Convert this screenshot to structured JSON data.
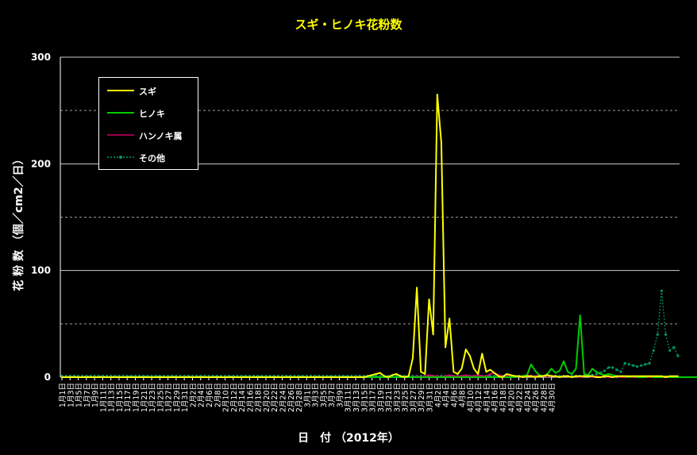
{
  "chart_data": {
    "type": "line",
    "title": "スギ・ヒノキ花粉数",
    "ylabel": "花 粉 数 （個／cm2／日）",
    "xlabel": "日　付 （2012年）",
    "ylim": [
      0,
      300
    ],
    "yticks": [
      0,
      100,
      200,
      300
    ],
    "grid": "horizontal, solid at 100s, dashed at 50s",
    "legend_position": "top-left",
    "x_tick_labels": [
      "1月1日",
      "1月3日",
      "1月5日",
      "1月7日",
      "1月9日",
      "1月11日",
      "1月13日",
      "1月15日",
      "1月17日",
      "1月19日",
      "1月21日",
      "1月23日",
      "1月25日",
      "1月27日",
      "1月29日",
      "1月31日",
      "2月2日",
      "2月4日",
      "2月6日",
      "2月8日",
      "2月10日",
      "2月12日",
      "2月14日",
      "2月16日",
      "2月18日",
      "2月20日",
      "2月22日",
      "2月24日",
      "2月26日",
      "2月28日",
      "3月1日",
      "3月3日",
      "3月5日",
      "3月7日",
      "3月9日",
      "3月11日",
      "3月13日",
      "3月15日",
      "3月17日",
      "3月19日",
      "3月21日",
      "3月23日",
      "3月25日",
      "3月27日",
      "3月29日",
      "3月31日",
      "4月2日",
      "4月4日",
      "4月6日",
      "4月8日",
      "4月10日",
      "4月12日",
      "4月14日",
      "4月16日",
      "4月18日",
      "4月20日",
      "4月22日",
      "4月24日",
      "4月26日",
      "4月28日",
      "4月30日"
    ],
    "series": [
      {
        "name": "スギ",
        "color": "#ffff00",
        "style": "solid",
        "values": [
          0,
          0,
          0,
          0,
          0,
          0,
          0,
          0,
          0,
          0,
          0,
          0,
          0,
          0,
          0,
          0,
          0,
          0,
          0,
          0,
          0,
          0,
          0,
          0,
          0,
          0,
          0,
          0,
          0,
          0,
          0,
          0,
          0,
          0,
          0,
          0,
          0,
          0,
          0,
          0,
          0,
          0,
          0,
          0,
          0,
          0,
          0,
          0,
          0,
          0,
          0,
          0,
          0,
          0,
          0,
          0,
          0,
          0,
          0,
          0,
          0,
          0,
          0,
          0,
          0,
          0,
          0,
          0,
          0,
          0,
          0,
          0,
          0,
          0,
          0,
          1,
          2,
          3,
          4,
          1,
          0,
          2,
          3,
          1,
          0,
          1,
          18,
          84,
          5,
          3,
          73,
          40,
          265,
          220,
          28,
          55,
          5,
          3,
          8,
          26,
          20,
          8,
          3,
          22,
          5,
          7,
          4,
          1,
          0,
          3,
          2,
          1,
          1,
          0,
          1,
          1,
          0,
          1,
          1,
          2,
          1,
          1,
          0,
          1,
          1,
          0,
          1,
          1,
          1,
          1,
          1,
          0,
          0,
          1,
          1,
          0,
          1,
          1,
          1,
          1,
          1,
          1,
          1,
          1,
          1,
          1,
          1,
          1,
          0,
          1,
          1,
          1
        ]
      },
      {
        "name": "ヒノキ",
        "color": "#00cc00",
        "style": "solid",
        "values": [
          0,
          0,
          0,
          0,
          0,
          0,
          0,
          0,
          0,
          0,
          0,
          0,
          0,
          0,
          0,
          0,
          0,
          0,
          0,
          0,
          0,
          0,
          0,
          0,
          0,
          0,
          0,
          0,
          0,
          0,
          0,
          0,
          0,
          0,
          0,
          0,
          0,
          0,
          0,
          0,
          0,
          0,
          0,
          0,
          0,
          0,
          0,
          0,
          0,
          0,
          0,
          0,
          0,
          0,
          0,
          0,
          0,
          0,
          0,
          0,
          0,
          0,
          0,
          0,
          0,
          0,
          0,
          0,
          0,
          0,
          0,
          0,
          0,
          0,
          0,
          0,
          0,
          0,
          0,
          0,
          0,
          0,
          0,
          0,
          0,
          0,
          0,
          0,
          0,
          0,
          0,
          0,
          0,
          0,
          0,
          0,
          0,
          0,
          0,
          0,
          0,
          0,
          0,
          0,
          0,
          0,
          0,
          0,
          0,
          0,
          0,
          0,
          1,
          1,
          2,
          12,
          6,
          2,
          1,
          3,
          8,
          4,
          6,
          15,
          5,
          3,
          8,
          58,
          3,
          2,
          8,
          5,
          3,
          2,
          3,
          2,
          1,
          1,
          1,
          0,
          1,
          0,
          0,
          0,
          1,
          0,
          0,
          0,
          1,
          0,
          0,
          0,
          0,
          0,
          0,
          0,
          0,
          0,
          0,
          0
        ]
      },
      {
        "name": "ハンノキ属",
        "color": "#cc0066",
        "style": "solid",
        "values": [
          0,
          0,
          0,
          0,
          0,
          0,
          0,
          0,
          0,
          0,
          0,
          0,
          0,
          0,
          0,
          0,
          0,
          0,
          0,
          0,
          0,
          0,
          0,
          0,
          0,
          0,
          0,
          0,
          0,
          0,
          0,
          0,
          0,
          0,
          0,
          0,
          0,
          0,
          0,
          0,
          0,
          0,
          0,
          0,
          0,
          0,
          0,
          0,
          0,
          0,
          0,
          0,
          0,
          0,
          0,
          0,
          0,
          0,
          0,
          0,
          0,
          0,
          0,
          0,
          0,
          0,
          0,
          0,
          0,
          0,
          0,
          0,
          0,
          0,
          0,
          0,
          0,
          0,
          0,
          0,
          0,
          0,
          0,
          0,
          0,
          0,
          0,
          1,
          0,
          1,
          2,
          1,
          1,
          0,
          1,
          2,
          1,
          1,
          1,
          2,
          1,
          1,
          2,
          1,
          1,
          3,
          4,
          2,
          1,
          1,
          2,
          1,
          1,
          1,
          2,
          1,
          1,
          2,
          1,
          1,
          1,
          1,
          0,
          1,
          1,
          0,
          1,
          0,
          1,
          1,
          0,
          1,
          0,
          1,
          0,
          0,
          1,
          0,
          0,
          0,
          0,
          0,
          0,
          0,
          0,
          0,
          0,
          0,
          0,
          0,
          0,
          0
        ]
      },
      {
        "name": "その他",
        "color": "#009966",
        "style": "dotted",
        "values": [
          1,
          1,
          1,
          1,
          1,
          1,
          1,
          1,
          1,
          1,
          1,
          1,
          1,
          1,
          1,
          1,
          1,
          1,
          1,
          1,
          1,
          1,
          1,
          1,
          1,
          1,
          1,
          1,
          1,
          1,
          1,
          1,
          1,
          1,
          1,
          1,
          1,
          1,
          1,
          1,
          1,
          1,
          1,
          1,
          1,
          1,
          1,
          1,
          1,
          1,
          1,
          1,
          1,
          1,
          1,
          1,
          1,
          1,
          1,
          1,
          1,
          1,
          1,
          1,
          1,
          1,
          1,
          1,
          1,
          1,
          1,
          1,
          1,
          1,
          1,
          1,
          1,
          1,
          1,
          1,
          1,
          1,
          1,
          1,
          1,
          1,
          1,
          1,
          1,
          1,
          1,
          1,
          1,
          1,
          1,
          1,
          1,
          1,
          1,
          1,
          1,
          1,
          1,
          1,
          1,
          1,
          1,
          1,
          1,
          1,
          1,
          1,
          1,
          1,
          1,
          1,
          1,
          1,
          1,
          1,
          1,
          1,
          1,
          1,
          1,
          1,
          1,
          1,
          1,
          2,
          2,
          3,
          4,
          6,
          9,
          9,
          7,
          5,
          13,
          12,
          11,
          10,
          11,
          12,
          13,
          25,
          40,
          81,
          40,
          25,
          28,
          20
        ]
      }
    ]
  }
}
